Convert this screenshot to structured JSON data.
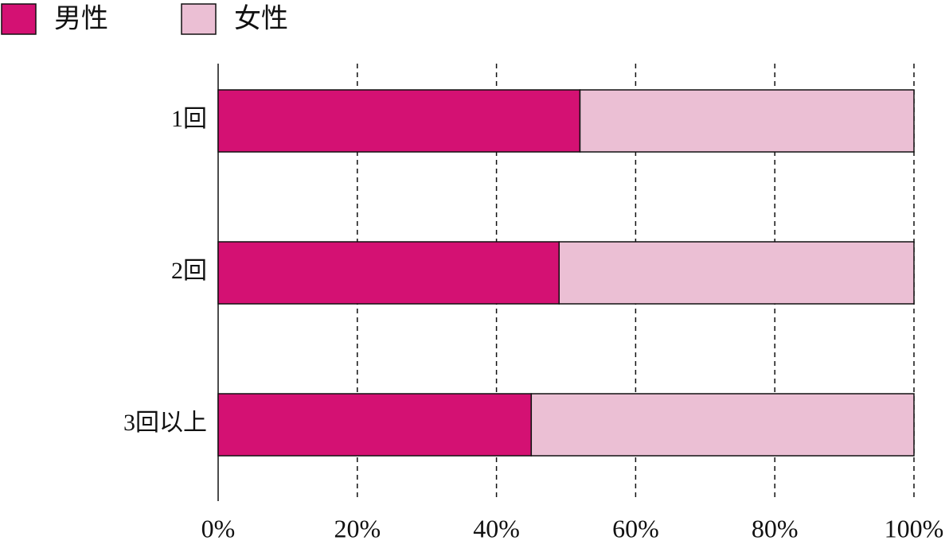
{
  "chart_data": {
    "type": "bar",
    "stacked": true,
    "categories": [
      "1回",
      "2回",
      "3回以上"
    ],
    "series": [
      {
        "name": "男性",
        "color": "#d41173",
        "values": [
          52,
          49,
          45
        ]
      },
      {
        "name": "女性",
        "color": "#ebbfd4",
        "values": [
          48,
          51,
          55
        ]
      }
    ],
    "xlim": [
      0,
      100
    ],
    "xticks": [
      {
        "value": 0,
        "label": "0%"
      },
      {
        "value": 20,
        "label": "20%"
      },
      {
        "value": 40,
        "label": "40%"
      },
      {
        "value": 60,
        "label": "60%"
      },
      {
        "value": 80,
        "label": "80%"
      },
      {
        "value": 100,
        "label": "100%"
      }
    ],
    "grid": true
  }
}
